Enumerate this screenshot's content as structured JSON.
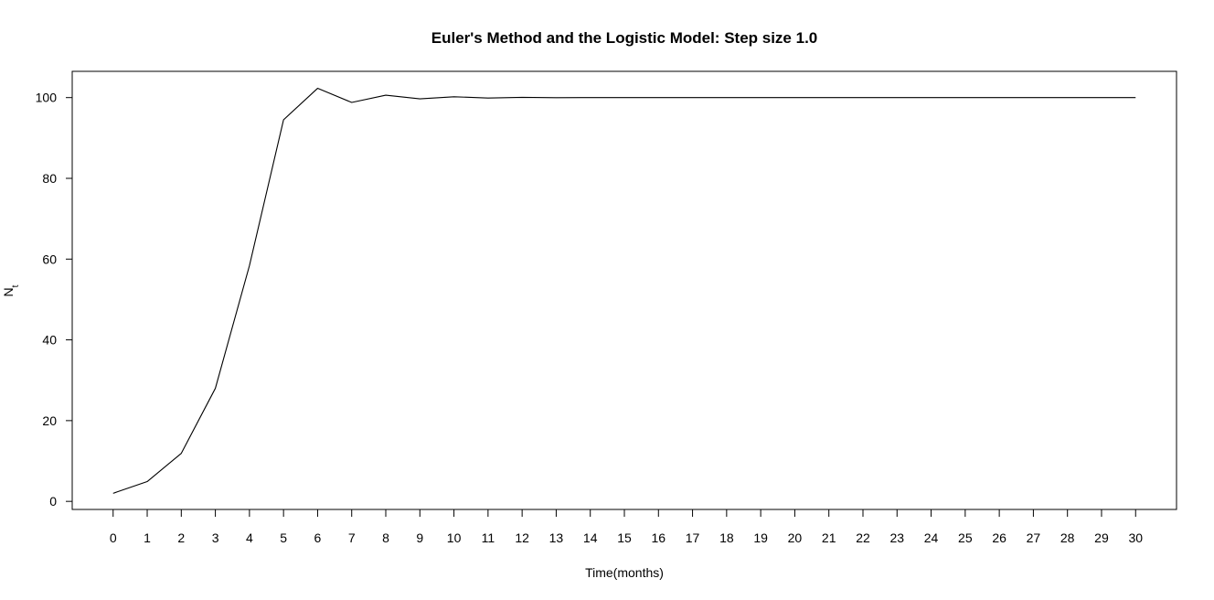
{
  "chart_data": {
    "type": "line",
    "title": "Euler's Method and the Logistic Model: Step size 1.0",
    "xlabel": "Time(months)",
    "ylabel": "N",
    "ylabel_subscript": "t",
    "x": [
      0,
      1,
      2,
      3,
      4,
      5,
      6,
      7,
      8,
      9,
      10,
      11,
      12,
      13,
      14,
      15,
      16,
      17,
      18,
      19,
      20,
      21,
      22,
      23,
      24,
      25,
      26,
      27,
      28,
      29,
      30
    ],
    "series": [
      {
        "values": [
          2,
          4.9,
          11.9,
          28,
          58.4,
          94.5,
          102.3,
          98.8,
          100.6,
          99.7,
          100.2,
          99.9,
          100.05,
          99.98,
          100.01,
          100,
          100,
          100,
          100,
          100,
          100,
          100,
          100,
          100,
          100,
          100,
          100,
          100,
          100,
          100,
          100
        ]
      }
    ],
    "xticks": [
      "0",
      "1",
      "2",
      "3",
      "4",
      "5",
      "6",
      "7",
      "8",
      "9",
      "10",
      "11",
      "12",
      "13",
      "14",
      "15",
      "16",
      "17",
      "18",
      "19",
      "20",
      "21",
      "22",
      "23",
      "24",
      "25",
      "26",
      "27",
      "28",
      "29",
      "30"
    ],
    "yticks": [
      "0",
      "20",
      "40",
      "60",
      "80",
      "100"
    ],
    "xlim": [
      -1.2,
      31.2
    ],
    "ylim": [
      -2,
      106.5
    ],
    "grid": false,
    "line_color": "#000000"
  }
}
